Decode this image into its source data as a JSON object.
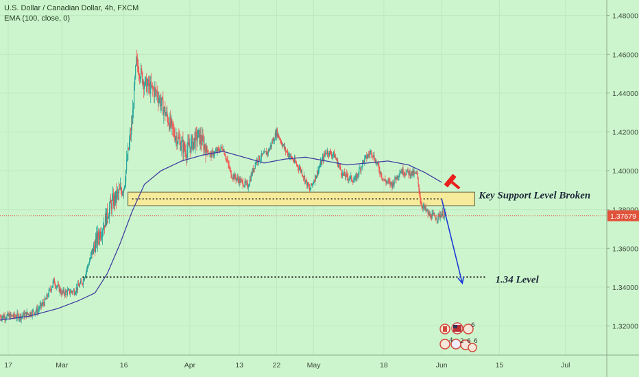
{
  "header": {
    "symbol_line": "U.S. Dollar / Canadian Dollar, 4h, FXCM",
    "indicator_line": "EMA (100, close, 0)"
  },
  "chart_data": {
    "type": "line",
    "series_kind": "candlestick",
    "ylim": [
      1.305,
      1.488
    ],
    "yticks": [
      1.32,
      1.34,
      1.36,
      1.38,
      1.4,
      1.42,
      1.44,
      1.46,
      1.48
    ],
    "ytick_labels": [
      "1.32000",
      "1.34000",
      "1.36000",
      "1.38000",
      "1.40000",
      "1.42000",
      "1.44000",
      "1.46000",
      "1.48000"
    ],
    "xticks": [
      {
        "label": "17",
        "date": "2020-02-17"
      },
      {
        "label": "Mar",
        "date": "2020-03-01"
      },
      {
        "label": "16",
        "date": "2020-03-16"
      },
      {
        "label": "Apr",
        "date": "2020-04-01"
      },
      {
        "label": "13",
        "date": "2020-04-13"
      },
      {
        "label": "22",
        "date": "2020-04-22"
      },
      {
        "label": "May",
        "date": "2020-05-01"
      },
      {
        "label": "18",
        "date": "2020-05-18"
      },
      {
        "label": "Jun",
        "date": "2020-06-01"
      },
      {
        "label": "15",
        "date": "2020-06-15"
      },
      {
        "label": "Jul",
        "date": "2020-07-01"
      }
    ],
    "xlim": [
      "2020-02-15",
      "2020-07-11"
    ],
    "price_path": [
      [
        "2020-02-15",
        1.325
      ],
      [
        "2020-02-20",
        1.325
      ],
      [
        "2020-02-24",
        1.328
      ],
      [
        "2020-02-26",
        1.333
      ],
      [
        "2020-02-28",
        1.343
      ],
      [
        "2020-03-01",
        1.337
      ],
      [
        "2020-03-04",
        1.338
      ],
      [
        "2020-03-06",
        1.343
      ],
      [
        "2020-03-09",
        1.362
      ],
      [
        "2020-03-11",
        1.372
      ],
      [
        "2020-03-13",
        1.383
      ],
      [
        "2020-03-16",
        1.392
      ],
      [
        "2020-03-18",
        1.425
      ],
      [
        "2020-03-19",
        1.456
      ],
      [
        "2020-03-21",
        1.445
      ],
      [
        "2020-03-24",
        1.44
      ],
      [
        "2020-03-26",
        1.43
      ],
      [
        "2020-03-28",
        1.42
      ],
      [
        "2020-03-31",
        1.41
      ],
      [
        "2020-04-03",
        1.418
      ],
      [
        "2020-04-06",
        1.408
      ],
      [
        "2020-04-09",
        1.412
      ],
      [
        "2020-04-11",
        1.398
      ],
      [
        "2020-04-13",
        1.395
      ],
      [
        "2020-04-15",
        1.392
      ],
      [
        "2020-04-17",
        1.405
      ],
      [
        "2020-04-20",
        1.41
      ],
      [
        "2020-04-22",
        1.42
      ],
      [
        "2020-04-24",
        1.411
      ],
      [
        "2020-04-28",
        1.4
      ],
      [
        "2020-04-30",
        1.39
      ],
      [
        "2020-05-01",
        1.395
      ],
      [
        "2020-05-04",
        1.41
      ],
      [
        "2020-05-06",
        1.408
      ],
      [
        "2020-05-08",
        1.398
      ],
      [
        "2020-05-11",
        1.395
      ],
      [
        "2020-05-13",
        1.405
      ],
      [
        "2020-05-15",
        1.41
      ],
      [
        "2020-05-18",
        1.395
      ],
      [
        "2020-05-20",
        1.393
      ],
      [
        "2020-05-22",
        1.4
      ],
      [
        "2020-05-26",
        1.398
      ],
      [
        "2020-05-27",
        1.383
      ],
      [
        "2020-05-29",
        1.377
      ],
      [
        "2020-05-31",
        1.376
      ],
      [
        "2020-06-01",
        1.378
      ],
      [
        "2020-06-02",
        1.3768
      ]
    ],
    "ema_100": [
      [
        "2020-02-15",
        1.323
      ],
      [
        "2020-02-22",
        1.325
      ],
      [
        "2020-02-29",
        1.329
      ],
      [
        "2020-03-05",
        1.333
      ],
      [
        "2020-03-09",
        1.337
      ],
      [
        "2020-03-12",
        1.347
      ],
      [
        "2020-03-15",
        1.362
      ],
      [
        "2020-03-18",
        1.379
      ],
      [
        "2020-03-21",
        1.393
      ],
      [
        "2020-03-25",
        1.4
      ],
      [
        "2020-03-30",
        1.405
      ],
      [
        "2020-04-04",
        1.408
      ],
      [
        "2020-04-09",
        1.41
      ],
      [
        "2020-04-14",
        1.407
      ],
      [
        "2020-04-19",
        1.404
      ],
      [
        "2020-04-24",
        1.406
      ],
      [
        "2020-04-29",
        1.407
      ],
      [
        "2020-05-04",
        1.405
      ],
      [
        "2020-05-09",
        1.403
      ],
      [
        "2020-05-14",
        1.404
      ],
      [
        "2020-05-19",
        1.405
      ],
      [
        "2020-05-24",
        1.403
      ],
      [
        "2020-05-28",
        1.399
      ],
      [
        "2020-06-01",
        1.394
      ]
    ],
    "support_zone": {
      "date_start": "2020-03-17",
      "date_end": "2020-06-09",
      "y_low": 1.382,
      "y_high": 1.389
    },
    "support_dotted": {
      "date_start": "2020-03-18",
      "date_end": "2020-06-01",
      "y": 1.3855
    },
    "target_dotted": {
      "date_start": "2020-03-06",
      "date_end": "2020-06-12",
      "y": 1.3452
    },
    "arrow": {
      "from": [
        "2020-06-01",
        1.3855
      ],
      "to": [
        "2020-06-06",
        1.342
      ]
    },
    "current_price": 1.37679,
    "current_price_label": "1.37679",
    "annotations": [
      {
        "text": "Key Support Level Broken",
        "date": "2020-06-10",
        "y": 1.3875
      },
      {
        "text": "1.34 Level",
        "date": "2020-06-14",
        "y": 1.344
      }
    ],
    "colors": {
      "background": "#cdf5cd",
      "up": "#26a69a",
      "down": "#ef5350",
      "ema": "#3f3fa0",
      "zone_fill": "#f5eb9a",
      "price_line": "#e0523a",
      "arrow": "#1a3ad6"
    }
  },
  "icons": {
    "hammer": "hammer-icon",
    "flags": "currency-flags-icon"
  },
  "flag_badges": [
    "6",
    "4",
    "2",
    "6",
    "6"
  ]
}
